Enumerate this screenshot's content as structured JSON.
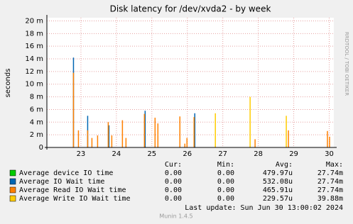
{
  "chart_data": {
    "type": "spike",
    "title": "Disk latency for /dev/xvda2 - by week",
    "y_label": "seconds",
    "side_label": "RRDTOOL / TOBI OETIKER",
    "xlim": [
      22.04,
      30.13
    ],
    "xticks": [
      23,
      24,
      25,
      26,
      27,
      28,
      29,
      30
    ],
    "ylim": [
      0,
      0.0205
    ],
    "yticks": [
      {
        "value": 0,
        "label": "0"
      },
      {
        "value": 0.002,
        "label": "2 m"
      },
      {
        "value": 0.004,
        "label": "4 m"
      },
      {
        "value": 0.006,
        "label": "6 m"
      },
      {
        "value": 0.008,
        "label": "8 m"
      },
      {
        "value": 0.01,
        "label": "10 m"
      },
      {
        "value": 0.012,
        "label": "12 m"
      },
      {
        "value": 0.014,
        "label": "14 m"
      },
      {
        "value": 0.016,
        "label": "16 m"
      },
      {
        "value": 0.018,
        "label": "18 m"
      },
      {
        "value": 0.02,
        "label": "20 m"
      }
    ],
    "grid": true,
    "stat_headers": [
      "Cur:",
      "Min:",
      "Avg:",
      "Max:"
    ],
    "series": [
      {
        "name": "Average device IO time",
        "color": "#00cc00",
        "x": [],
        "values": [],
        "stats": [
          "0.00",
          "0.00",
          "479.97u",
          "27.74m"
        ]
      },
      {
        "name": "Average IO Wait time",
        "color": "#0066b3",
        "x": [
          22.78,
          23.18,
          23.78,
          24.8,
          26.2
        ],
        "values": [
          0.0142,
          0.005,
          0.0035,
          0.0058,
          0.0054
        ],
        "stats": [
          "0.00",
          "0.00",
          "532.08u",
          "27.74m"
        ]
      },
      {
        "name": "Average Read IO Wait time",
        "color": "#ff8000",
        "x": [
          22.78,
          22.92,
          23.18,
          23.3,
          23.46,
          23.76,
          23.86,
          24.16,
          24.26,
          24.78,
          25.08,
          25.16,
          25.78,
          25.92,
          25.98,
          26.18,
          27.9,
          28.84,
          29.94,
          30.0
        ],
        "values": [
          0.0118,
          0.0027,
          0.0027,
          0.0015,
          0.0019,
          0.004,
          0.0019,
          0.0043,
          0.0015,
          0.0053,
          0.0047,
          0.0038,
          0.0049,
          0.0006,
          0.0015,
          0.0048,
          0.0013,
          0.0027,
          0.0026,
          0.0017
        ],
        "stats": [
          "0.00",
          "0.00",
          "465.91u",
          "27.74m"
        ]
      },
      {
        "name": "Average Write IO Wait time",
        "color": "#ffcc00",
        "x": [
          26.78,
          27.76,
          28.78
        ],
        "values": [
          0.0054,
          0.008,
          0.005
        ],
        "stats": [
          "0.00",
          "0.00",
          "229.57u",
          "39.88m"
        ]
      }
    ],
    "last_update": "Last update:  Sun Jun 30 13:00:02 2024",
    "footer": "Munin 1.4.5"
  }
}
